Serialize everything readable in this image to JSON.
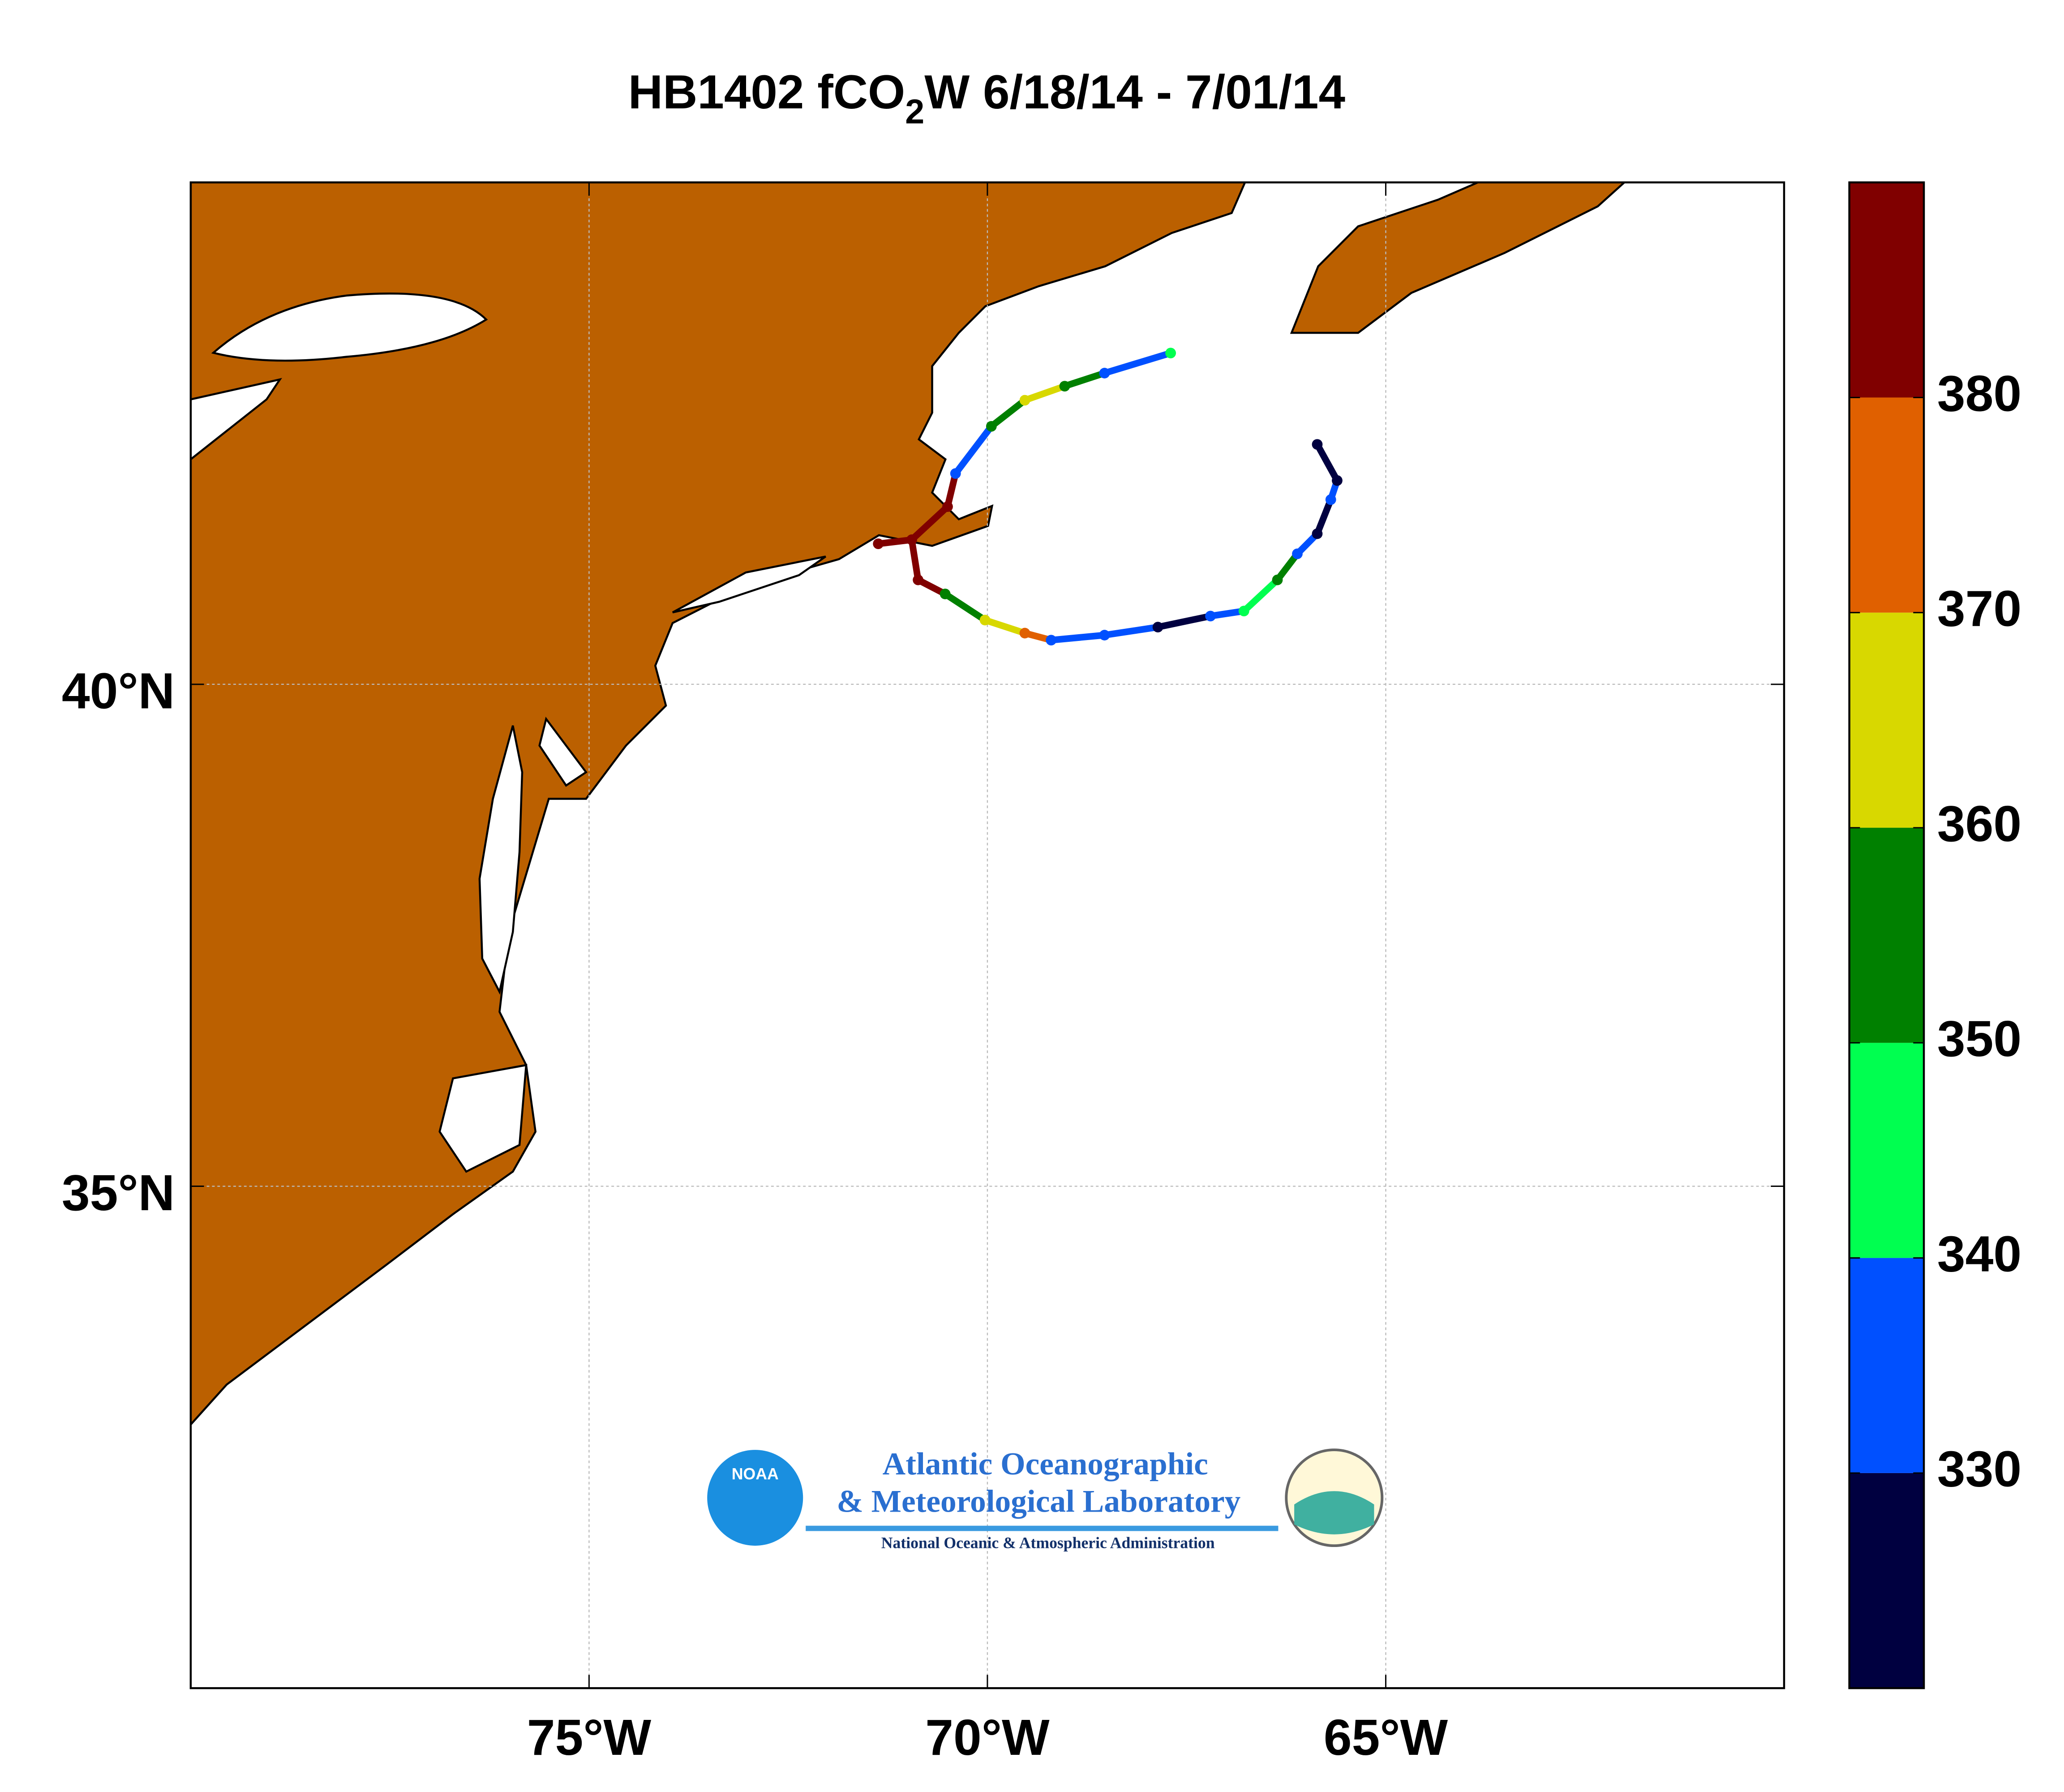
{
  "chart_data": {
    "type": "map",
    "title_parts": [
      "HB1402 fCO",
      "2",
      "W 6/18/14 - 7/01/14"
    ],
    "xlim": [
      -80,
      -60
    ],
    "ylim": [
      30,
      45
    ],
    "xticks": [
      {
        "value": -75,
        "label": "75°W"
      },
      {
        "value": -70,
        "label": "70°W"
      },
      {
        "value": -65,
        "label": "65°W"
      }
    ],
    "yticks": [
      {
        "value": 35,
        "label": "35°N"
      },
      {
        "value": 40,
        "label": "40°N"
      }
    ],
    "grid": true,
    "land_color": "#bb6000",
    "series": [
      {
        "lon": [
          -71.37,
          -70.95,
          -70.5,
          -70.4,
          -69.95,
          -69.53,
          -69.03,
          -68.53,
          -67.7
        ],
        "lat": [
          41.4,
          41.44,
          41.77,
          42.1,
          42.57,
          42.83,
          42.97,
          43.1,
          43.3
        ],
        "values": [
          385,
          385,
          385,
          335,
          355,
          365,
          355,
          335,
          345
        ]
      },
      {
        "lon": [
          -70.95,
          -70.87,
          -70.53,
          -70.03,
          -69.53,
          -69.2,
          -68.53,
          -67.86,
          -67.2,
          -66.78,
          -66.36,
          -66.11,
          -65.86,
          -65.69,
          -65.61,
          -65.86
        ],
        "lat": [
          41.44,
          41.04,
          40.9,
          40.64,
          40.51,
          40.44,
          40.49,
          40.57,
          40.68,
          40.73,
          41.04,
          41.3,
          41.5,
          41.84,
          42.03,
          42.39
        ],
        "values": [
          385,
          385,
          355,
          365,
          375,
          335,
          335,
          325,
          335,
          345,
          355,
          335,
          325,
          335,
          325,
          325
        ]
      }
    ],
    "colorbar": {
      "bins": [
        320,
        330,
        340,
        350,
        360,
        370,
        380,
        390
      ],
      "colors": [
        "#000040",
        "#0050ff",
        "#00ff50",
        "#008000",
        "#d8d800",
        "#e06000",
        "#800000"
      ],
      "ticks": [
        330,
        340,
        350,
        360,
        370,
        380
      ]
    }
  },
  "logo": {
    "badge": "NOAA",
    "line1": "Atlantic Oceanographic",
    "line2": "& Meteorological Laboratory",
    "line3": "National Oceanic & Atmospheric Administration"
  }
}
